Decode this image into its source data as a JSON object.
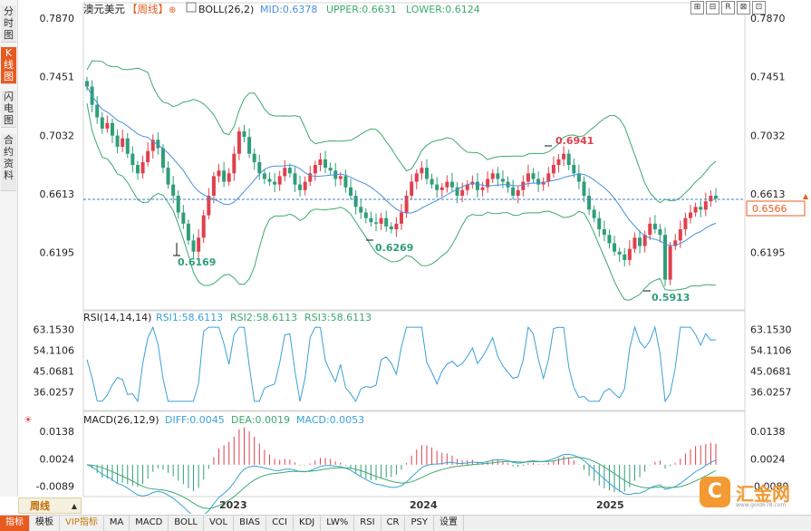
{
  "left_tabs": [
    {
      "label": "分时图",
      "active": false
    },
    {
      "label": "K线图",
      "active": true
    },
    {
      "label": "闪电图",
      "active": false
    },
    {
      "label": "合约资料",
      "active": false
    }
  ],
  "main_panel": {
    "symbol": "澳元美元",
    "period_tag": "【周线】",
    "indicator": "BOLL(26,2)",
    "mid": "MID:0.6378",
    "upper": "UPPER:0.6631",
    "lower": "LOWER:0.6124",
    "y_ticks": [
      "0.7870",
      "0.7451",
      "0.7032",
      "0.6613",
      "0.6195"
    ],
    "current_price": "0.6566",
    "annotations": {
      "low1": "0.6169",
      "low2": "0.6269",
      "high": "0.6941",
      "low3": "0.5913"
    }
  },
  "rsi_panel": {
    "label": "RSI(14,14,14)",
    "rsi1": "RSI1:58.6113",
    "rsi2": "RSI2:58.6113",
    "rsi3": "RSI3:58.6113",
    "y_ticks": [
      "63.1530",
      "54.1106",
      "45.0681",
      "36.0257"
    ]
  },
  "macd_panel": {
    "label": "MACD(26,12,9)",
    "diff": "DIFF:0.0045",
    "dea": "DEA:0.0019",
    "macd": "MACD:0.0053",
    "y_ticks": [
      "0.0138",
      "0.0024",
      "-0.0089"
    ]
  },
  "x_labels": [
    "2023",
    "2024",
    "2025"
  ],
  "period_selector": "周线",
  "toolbar": [
    "⊞",
    "⊟",
    "R",
    "⊠",
    "⊡"
  ],
  "bottom_tabs": [
    {
      "label": "指标",
      "active": true
    },
    {
      "label": "模板"
    },
    {
      "label": "VIP指标",
      "vip": true
    },
    {
      "label": "MA"
    },
    {
      "label": "MACD"
    },
    {
      "label": "BOLL"
    },
    {
      "label": "VOL"
    },
    {
      "label": "BIAS"
    },
    {
      "label": "CCI"
    },
    {
      "label": "KDJ"
    },
    {
      "label": "LW%"
    },
    {
      "label": "RSI"
    },
    {
      "label": "CR"
    },
    {
      "label": "PSY"
    },
    {
      "label": "设置"
    }
  ],
  "logo": {
    "mark": "C",
    "name": "汇金网",
    "url": "www.gold678.com"
  },
  "colors": {
    "up": "#e0404c",
    "down": "#2f9e78",
    "boll_mid": "#4a90d9",
    "boll_band": "#3daa6e",
    "rsi": "#3aa0d8",
    "accent": "#e85b20",
    "price_line": "#3f7fd0"
  },
  "chart_data": [
    {
      "type": "candlestick",
      "panel": "main",
      "series": [
        {
          "name": "MID",
          "last": 0.6378
        },
        {
          "name": "UPPER",
          "last": 0.6631
        },
        {
          "name": "LOWER",
          "last": 0.6124
        }
      ],
      "ylim": [
        0.5913,
        0.787
      ],
      "labeled_points": [
        {
          "label": "0.6169",
          "value": 0.6169
        },
        {
          "label": "0.6269",
          "value": 0.6269
        },
        {
          "label": "0.6941",
          "value": 0.6941
        },
        {
          "label": "0.5913",
          "value": 0.5913
        }
      ],
      "close_shape": [
        0.738,
        0.725,
        0.716,
        0.708,
        0.712,
        0.703,
        0.695,
        0.701,
        0.69,
        0.682,
        0.676,
        0.684,
        0.692,
        0.7,
        0.694,
        0.68,
        0.668,
        0.66,
        0.648,
        0.64,
        0.628,
        0.62,
        0.63,
        0.646,
        0.66,
        0.674,
        0.678,
        0.67,
        0.676,
        0.69,
        0.706,
        0.702,
        0.69,
        0.684,
        0.676,
        0.672,
        0.67,
        0.668,
        0.674,
        0.68,
        0.676,
        0.668,
        0.664,
        0.67,
        0.676,
        0.682,
        0.686,
        0.68,
        0.678,
        0.672,
        0.674,
        0.666,
        0.66,
        0.652,
        0.648,
        0.644,
        0.641,
        0.64,
        0.644,
        0.638,
        0.636,
        0.64,
        0.648,
        0.66,
        0.67,
        0.676,
        0.68,
        0.672,
        0.668,
        0.664,
        0.666,
        0.67,
        0.666,
        0.66,
        0.664,
        0.668,
        0.67,
        0.664,
        0.666,
        0.672,
        0.676,
        0.672,
        0.67,
        0.666,
        0.66,
        0.664,
        0.67,
        0.676,
        0.672,
        0.668,
        0.67,
        0.676,
        0.682,
        0.686,
        0.69,
        0.682,
        0.676,
        0.67,
        0.66,
        0.65,
        0.644,
        0.636,
        0.632,
        0.626,
        0.62,
        0.618,
        0.614,
        0.622,
        0.63,
        0.624,
        0.632,
        0.64,
        0.636,
        0.632,
        0.6,
        0.624,
        0.628,
        0.636,
        0.644,
        0.648,
        0.652,
        0.65,
        0.656,
        0.66,
        0.658
      ]
    },
    {
      "type": "line",
      "panel": "rsi",
      "ylim": [
        30,
        66
      ],
      "last": 58.6113
    },
    {
      "type": "bar",
      "panel": "macd",
      "ylim": [
        -0.012,
        0.016
      ],
      "last_diff": 0.0045,
      "last_dea": 0.0019,
      "last_macd": 0.0053
    }
  ]
}
